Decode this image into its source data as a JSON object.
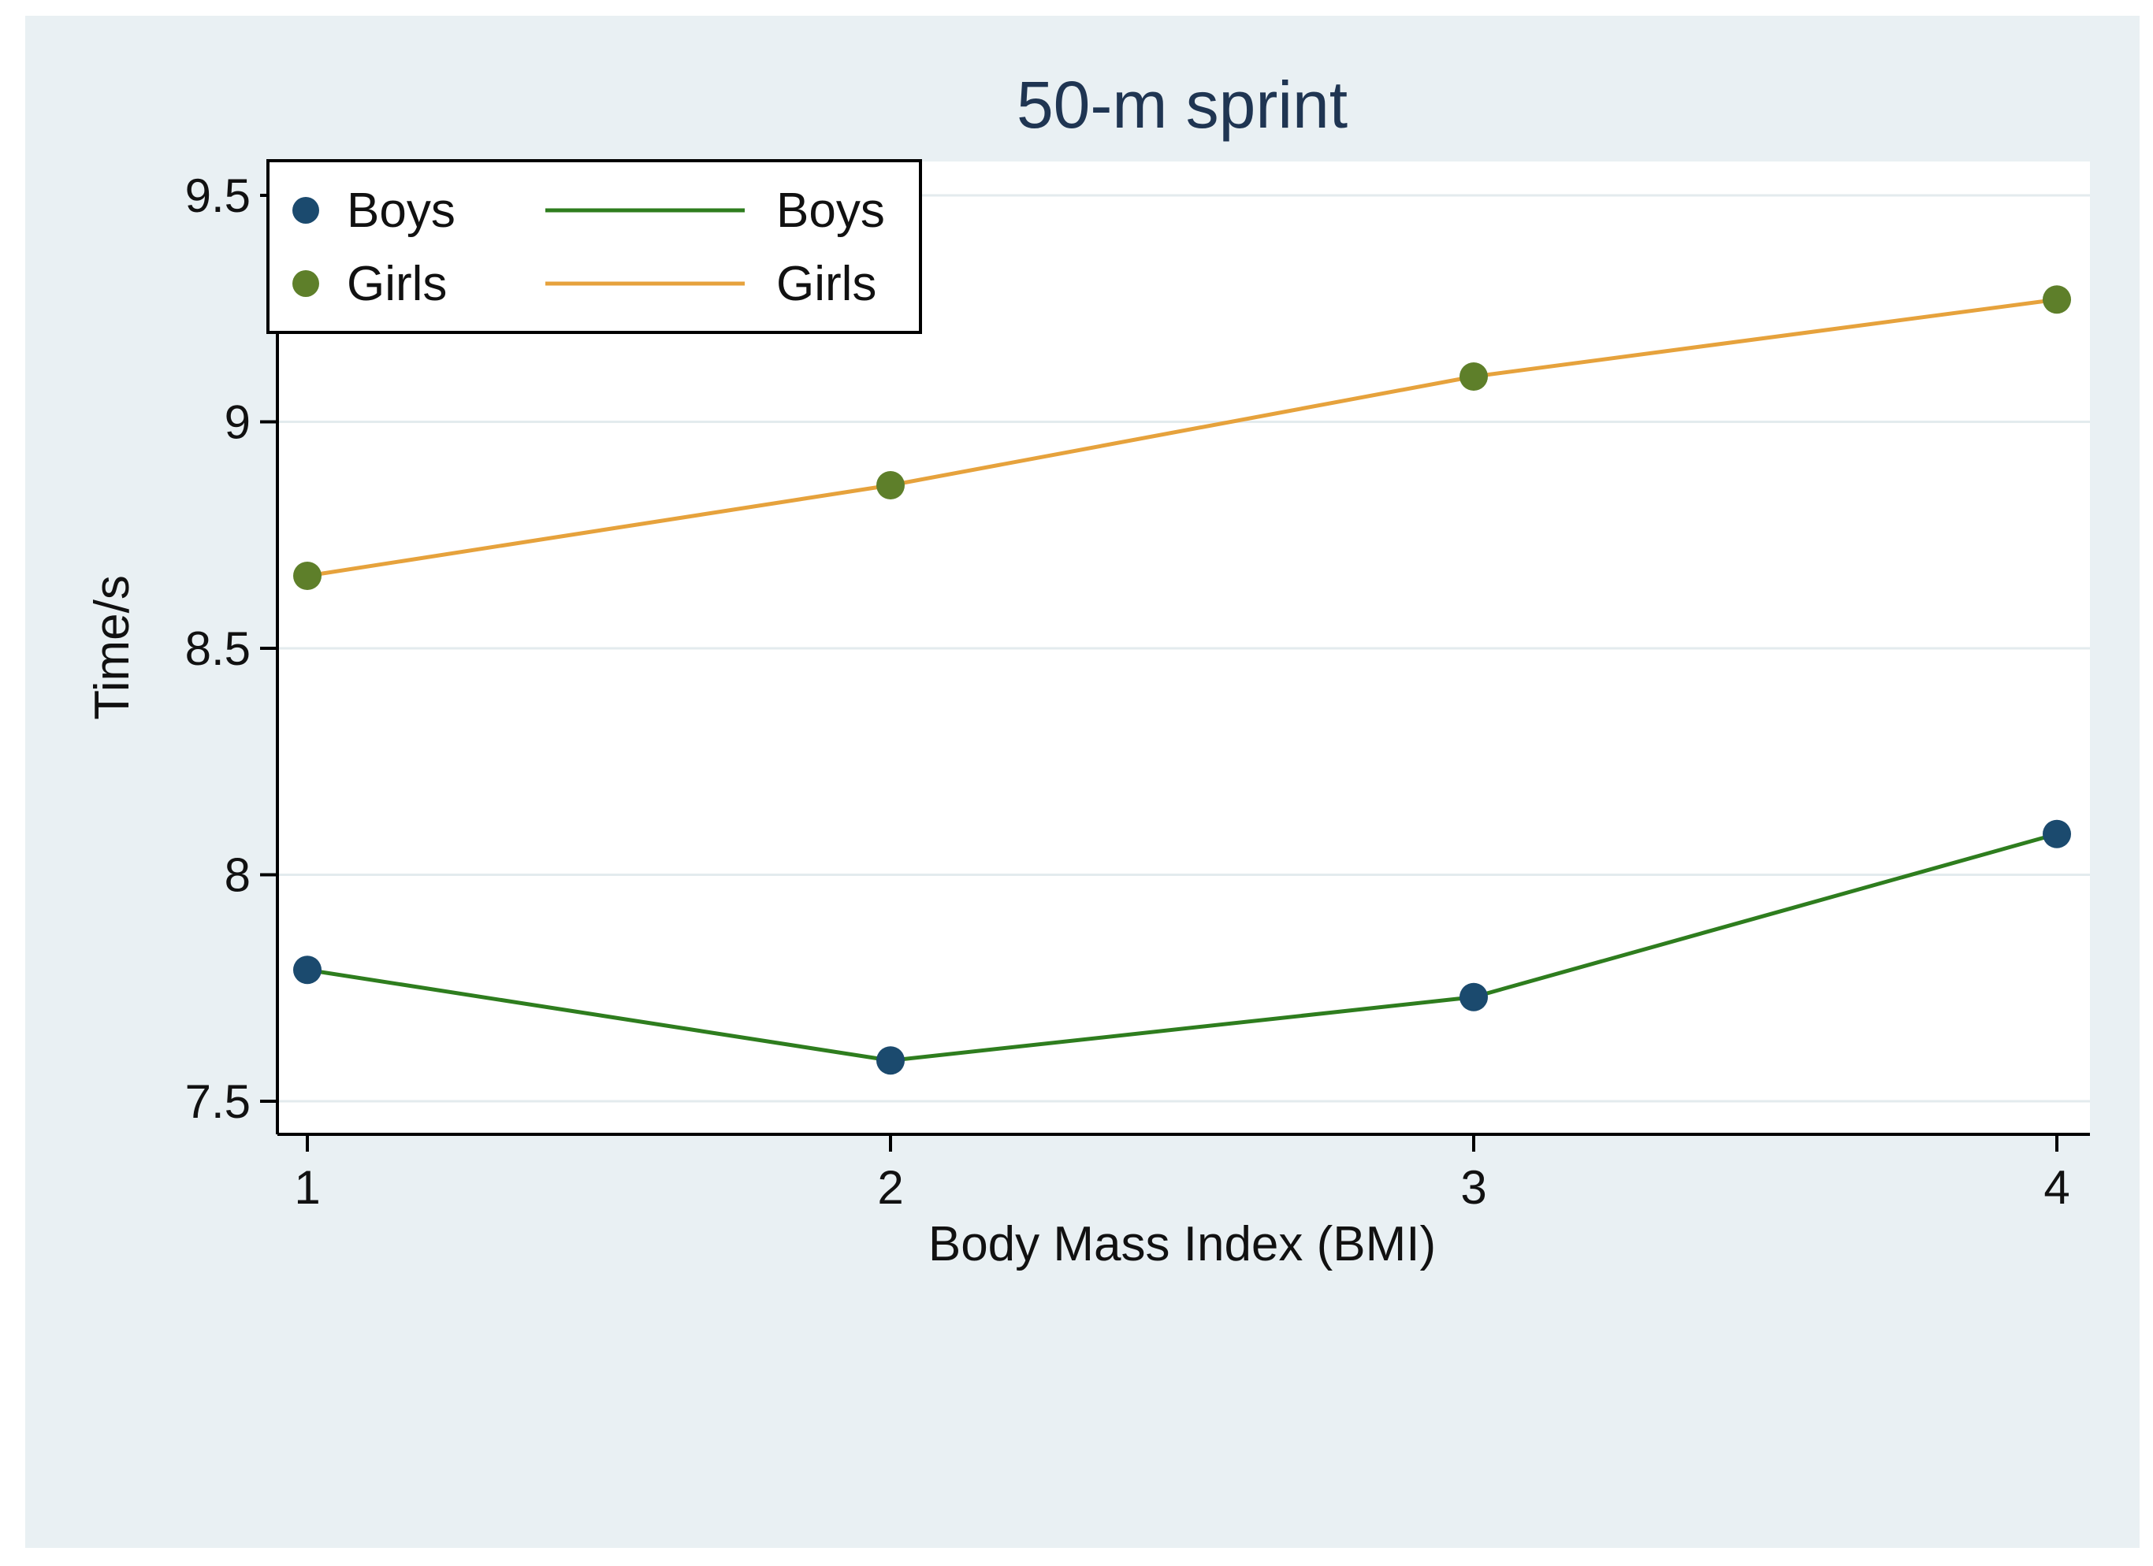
{
  "chart_data": {
    "type": "line",
    "title": "50-m sprint",
    "xlabel": "Body Mass Index (BMI)",
    "ylabel": "Time/s",
    "x": [
      1,
      2,
      3,
      4
    ],
    "x_ticks": [
      "1",
      "2",
      "3",
      "4"
    ],
    "xlim": [
      1,
      4
    ],
    "y_ticks": [
      "7.5",
      "8",
      "8.5",
      "9",
      "9.5"
    ],
    "ylim": [
      7.5,
      9.5
    ],
    "grid": true,
    "legend_position": "top-left",
    "series": [
      {
        "name": "Boys",
        "values": [
          7.79,
          7.59,
          7.73,
          8.09
        ],
        "marker_label": "Boys",
        "line_label": "Boys",
        "marker_color": "#1b4a6e",
        "line_color": "#2e7d1e"
      },
      {
        "name": "Girls",
        "values": [
          8.66,
          8.86,
          9.1,
          9.27
        ],
        "marker_label": "Girls",
        "line_label": "Girls",
        "marker_color": "#5e7f2a",
        "line_color": "#e6a23c"
      }
    ],
    "colors": {
      "background": "#e9f0f3",
      "plot_background": "#ffffff",
      "gridline": "#e3ebee",
      "axis": "#000000",
      "title": "#1f3552",
      "text": "#111111"
    }
  }
}
